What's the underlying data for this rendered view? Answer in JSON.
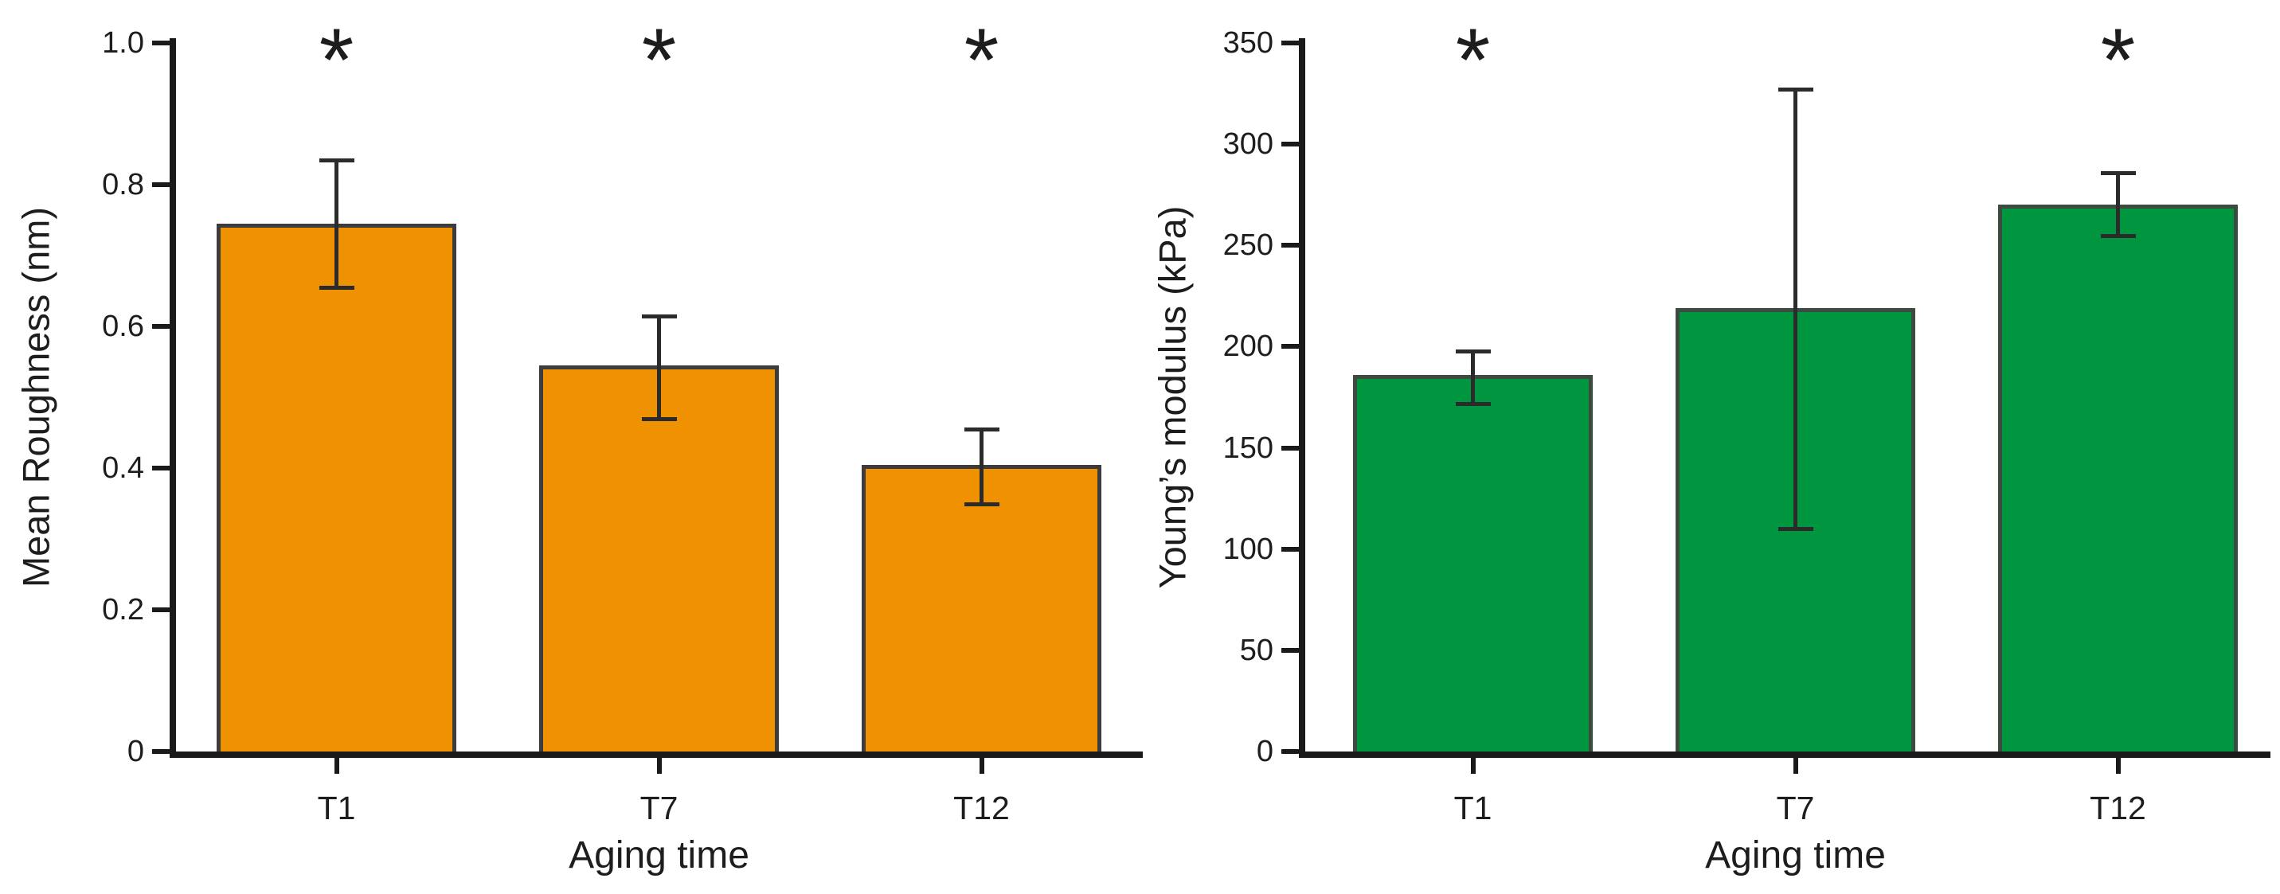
{
  "figure": {
    "background_color": "#ffffff",
    "description_left_panel": "bar chart of mean roughness versus aging time",
    "description_right_panel": "bar chart of Young's modulus versus aging time"
  },
  "chart_data": [
    {
      "type": "bar",
      "title": "",
      "xlabel": "Aging time",
      "ylabel": "Mean Roughness (nm)",
      "categories": [
        "T1",
        "T7",
        "T12"
      ],
      "values": [
        0.745,
        0.545,
        0.405
      ],
      "error_upper": [
        0.835,
        0.615,
        0.455
      ],
      "error_lower": [
        0.655,
        0.47,
        0.35
      ],
      "significance": [
        "*",
        "*",
        "*"
      ],
      "ylim": [
        0,
        1.0
      ],
      "yticks": [
        0,
        0.2,
        0.4,
        0.6,
        0.8,
        1.0
      ],
      "ytick_labels": [
        "0",
        "0.2",
        "0.4",
        "0.6",
        "0.8",
        "1.0"
      ],
      "bar_color": "#EF9100",
      "bar_border_color": "#3C3C3C",
      "axis_color": "#1A1A1A",
      "error_bar_color": "#2B2B2B",
      "grid": false,
      "legend": null
    },
    {
      "type": "bar",
      "title": "",
      "xlabel": "Aging time",
      "ylabel": "Young’s modulus (kPa)",
      "categories": [
        "T1",
        "T7",
        "T12"
      ],
      "values": [
        186,
        219,
        270
      ],
      "error_upper": [
        198,
        327,
        286
      ],
      "error_lower": [
        172,
        110,
        255
      ],
      "significance": [
        "*",
        "",
        "*"
      ],
      "ylim": [
        0,
        350
      ],
      "yticks": [
        0,
        50,
        100,
        150,
        200,
        250,
        300,
        350
      ],
      "ytick_labels": [
        "0",
        "50",
        "100",
        "150",
        "200",
        "250",
        "300",
        "350"
      ],
      "bar_color": "#009640",
      "bar_border_color": "#3C4A3F",
      "axis_color": "#1A1A1A",
      "error_bar_color": "#2B2B2B",
      "grid": false,
      "legend": null
    }
  ]
}
